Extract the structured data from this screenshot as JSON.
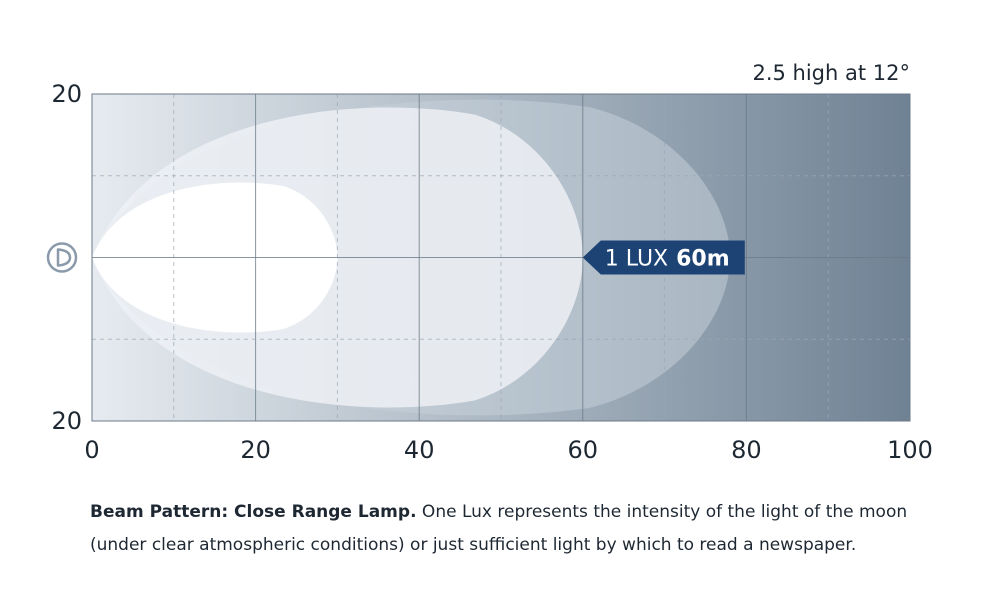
{
  "chart_data": {
    "type": "area",
    "title": "",
    "subtitle": "2.5 high at 12°",
    "xlabel": "",
    "ylabel": "",
    "xlim": [
      0,
      100
    ],
    "ylim": [
      -20,
      20
    ],
    "x_ticks": [
      "0",
      "20",
      "40",
      "60",
      "80",
      "100"
    ],
    "y_ticks": [
      "20",
      "20"
    ],
    "grid": true,
    "legend": "none",
    "colors": {
      "background_left": "#e6ebf0",
      "background_right": "#6f8294",
      "zone_outer": "#c5cfd9",
      "zone_1lux": "#edf0f4",
      "zone_core": "#ffffff",
      "grid_major": "#6b7a88",
      "grid_minor": "#9aa8b5",
      "label_bg": "#1d4375",
      "label_text": "#ffffff",
      "axis_text": "#1e2833"
    },
    "series": [
      {
        "name": "",
        "reach": 78,
        "half_width": 20
      },
      {
        "name": "",
        "reach": 60,
        "half_width": 19
      },
      {
        "name": "",
        "reach": 30,
        "half_width": 9.5
      }
    ],
    "annotations": {
      "lux_label": "1 LUX",
      "lux_distance": "60m",
      "lux_x": 60,
      "lux_icon": "headlamp-icon"
    }
  },
  "caption": {
    "bold": "Beam Pattern: Close Range Lamp.",
    "text": " One Lux represents the intensity of the light of the moon (under clear atmospheric conditions) or just sufficient light by which to read a newspaper."
  }
}
